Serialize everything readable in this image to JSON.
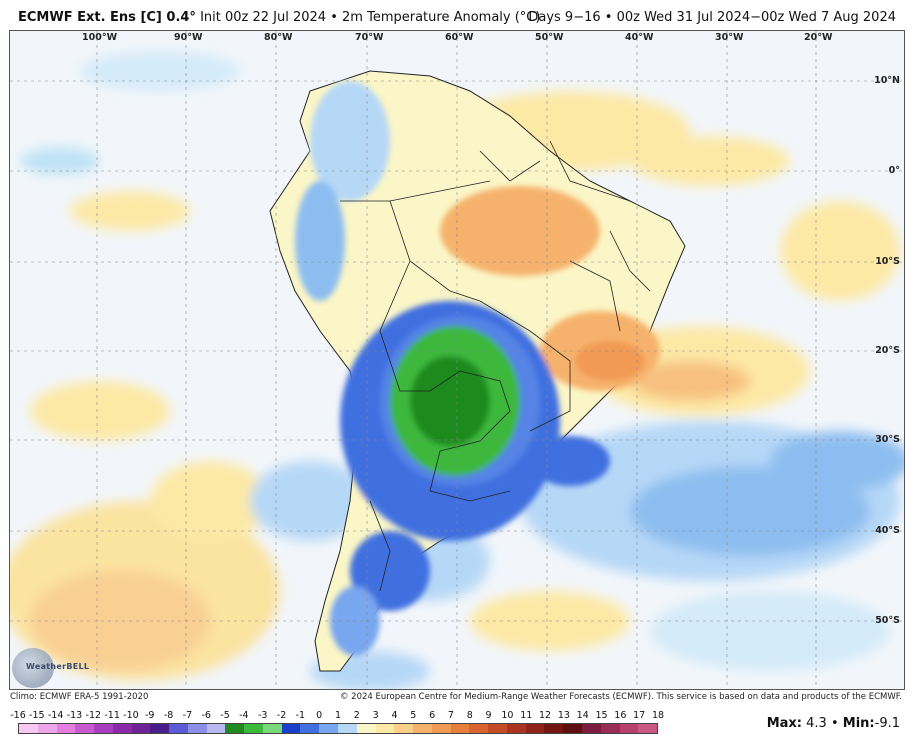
{
  "header": {
    "model": "ECMWF Ext. Ens [C] 0.4°",
    "init": "Init 00z 22 Jul 2024",
    "separator": "•",
    "field": "2m Temperature Anomaly (°C)",
    "valid": "Days 9−16 • 00z Wed 31 Jul 2024−00z Wed 7 Aug 2024"
  },
  "map": {
    "longitude_labels": [
      "100°W",
      "90°W",
      "80°W",
      "70°W",
      "60°W",
      "50°W",
      "40°W",
      "30°W",
      "20°W"
    ],
    "latitude_labels": [
      "10°N",
      "0°",
      "10°S",
      "20°S",
      "30°S",
      "40°S",
      "50°S"
    ],
    "region": "South America",
    "logo": "WeatherBELL"
  },
  "footer": {
    "climo": "Climo: ECMWF ERA-5 1991-2020",
    "copyright": "© 2024 European Centre for Medium-Range Weather Forecasts (ECMWF). This service is based on data and products of the ECMWF."
  },
  "colorbar": {
    "ticks": [
      "-16",
      "-15",
      "-14",
      "-13",
      "-12",
      "-11",
      "-10",
      "-9",
      "-8",
      "-7",
      "-6",
      "-5",
      "-4",
      "-3",
      "-2",
      "-1",
      "0",
      "1",
      "2",
      "3",
      "4",
      "5",
      "6",
      "7",
      "8",
      "9",
      "10",
      "11",
      "12",
      "13",
      "14",
      "15",
      "16",
      "17",
      "18"
    ],
    "colors": [
      "#f6c8f2",
      "#eea6ea",
      "#e27fdf",
      "#c95bd0",
      "#a93dc0",
      "#8a2aa8",
      "#6e2396",
      "#4a1d8c",
      "#5b5bd6",
      "#8c8ee8",
      "#b9b9f2",
      "#1f8a1f",
      "#3cb83c",
      "#7bd87b",
      "#1a3fc9",
      "#3f6fe0",
      "#78a6ef",
      "#b6d8f7",
      "#fbf6c7",
      "#fde9a6",
      "#fbd08a",
      "#f6b26c",
      "#f19a55",
      "#e67f3e",
      "#d8642e",
      "#c44b26",
      "#aa3420",
      "#8f2219",
      "#741612",
      "#5e0f0e",
      "#7a1d3e",
      "#9a2d54",
      "#b8406c",
      "#c85a82"
    ]
  },
  "stats": {
    "max_label": "Max:",
    "max_value": "4.3",
    "sep": "•",
    "min_label": "Min:",
    "min_value": "-9.1"
  }
}
